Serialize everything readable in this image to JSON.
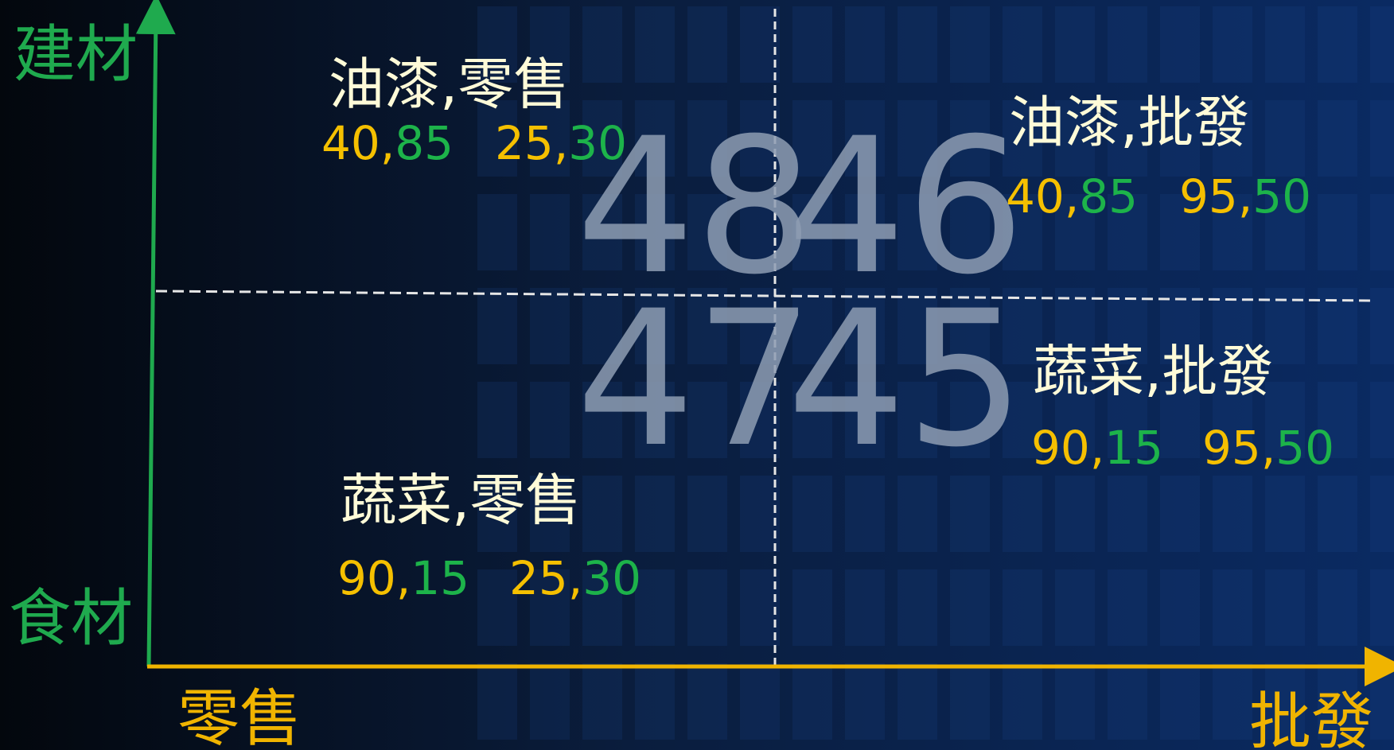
{
  "axes": {
    "y_top": "建材",
    "y_bottom": "食材",
    "x_left": "零售",
    "x_right": "批發"
  },
  "separator": ",",
  "quadrants": [
    {
      "title": "油漆,零售",
      "number": 48,
      "pairs": [
        [
          40,
          85
        ],
        [
          25,
          30
        ]
      ]
    },
    {
      "title": "油漆,批發",
      "number": 46,
      "pairs": [
        [
          40,
          85
        ],
        [
          95,
          50
        ]
      ]
    },
    {
      "title": "蔬菜,零售",
      "number": 47,
      "pairs": [
        [
          90,
          15
        ],
        [
          25,
          30
        ]
      ]
    },
    {
      "title": "蔬菜,批發",
      "number": 45,
      "pairs": [
        [
          90,
          15
        ],
        [
          95,
          50
        ]
      ]
    }
  ]
}
